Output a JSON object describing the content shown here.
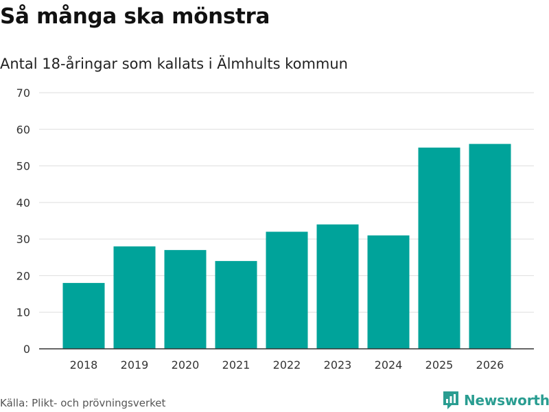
{
  "title": "Så många ska mönstra",
  "subtitle": "Antal 18-åringar som kallats i Älmhults kommun",
  "source": "Källa: Plikt- och prövningsverket",
  "brand": {
    "name": "Newsworthy",
    "icon": "newsworthy-logo-icon",
    "color": "#2a9d91"
  },
  "colors": {
    "bar": "#00a39a",
    "grid": "#dddddd",
    "axis": "#333333"
  },
  "chart_data": {
    "type": "bar",
    "title": "Så många ska mönstra",
    "subtitle": "Antal 18-åringar som kallats i Älmhults kommun",
    "xlabel": "",
    "ylabel": "",
    "categories": [
      "2018",
      "2019",
      "2020",
      "2021",
      "2022",
      "2023",
      "2024",
      "2025",
      "2026"
    ],
    "values": [
      18,
      28,
      27,
      24,
      32,
      34,
      31,
      55,
      56
    ],
    "ylim": [
      0,
      70
    ],
    "yticks": [
      0,
      10,
      20,
      30,
      40,
      50,
      60,
      70
    ],
    "grid": true,
    "legend": "none"
  }
}
